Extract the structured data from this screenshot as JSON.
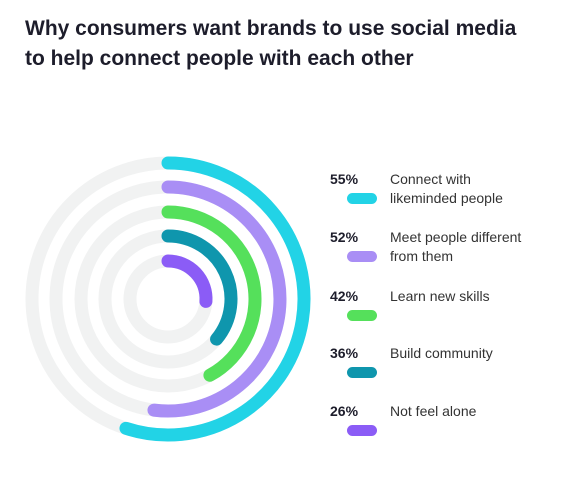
{
  "chart_data": {
    "type": "radial-bar",
    "title": "Why consumers want brands to use social media to help connect people with each other",
    "title_lines": [
      "Why consumers want brands to use social media",
      "to help connect people with each other"
    ],
    "unit": "%",
    "max": 100,
    "categories": [
      "Connect with likeminded people",
      "Meet people different from them",
      "Learn new skills",
      "Build community",
      "Not feel alone"
    ],
    "values": [
      55,
      52,
      42,
      36,
      26
    ],
    "value_labels": [
      "55%",
      "52%",
      "42%",
      "36%",
      "26%"
    ],
    "label_lines": [
      [
        "Connect with",
        "likeminded people"
      ],
      [
        "Meet people different",
        "from them"
      ],
      [
        "Learn new skills"
      ],
      [
        "Build community"
      ],
      [
        "Not feel alone"
      ]
    ],
    "colors": [
      "#22d3e6",
      "#a98ef5",
      "#55e05b",
      "#0f96ad",
      "#8b5cf6"
    ],
    "track_color": "#f1f2f2",
    "legend_position": "right",
    "grid": false
  }
}
